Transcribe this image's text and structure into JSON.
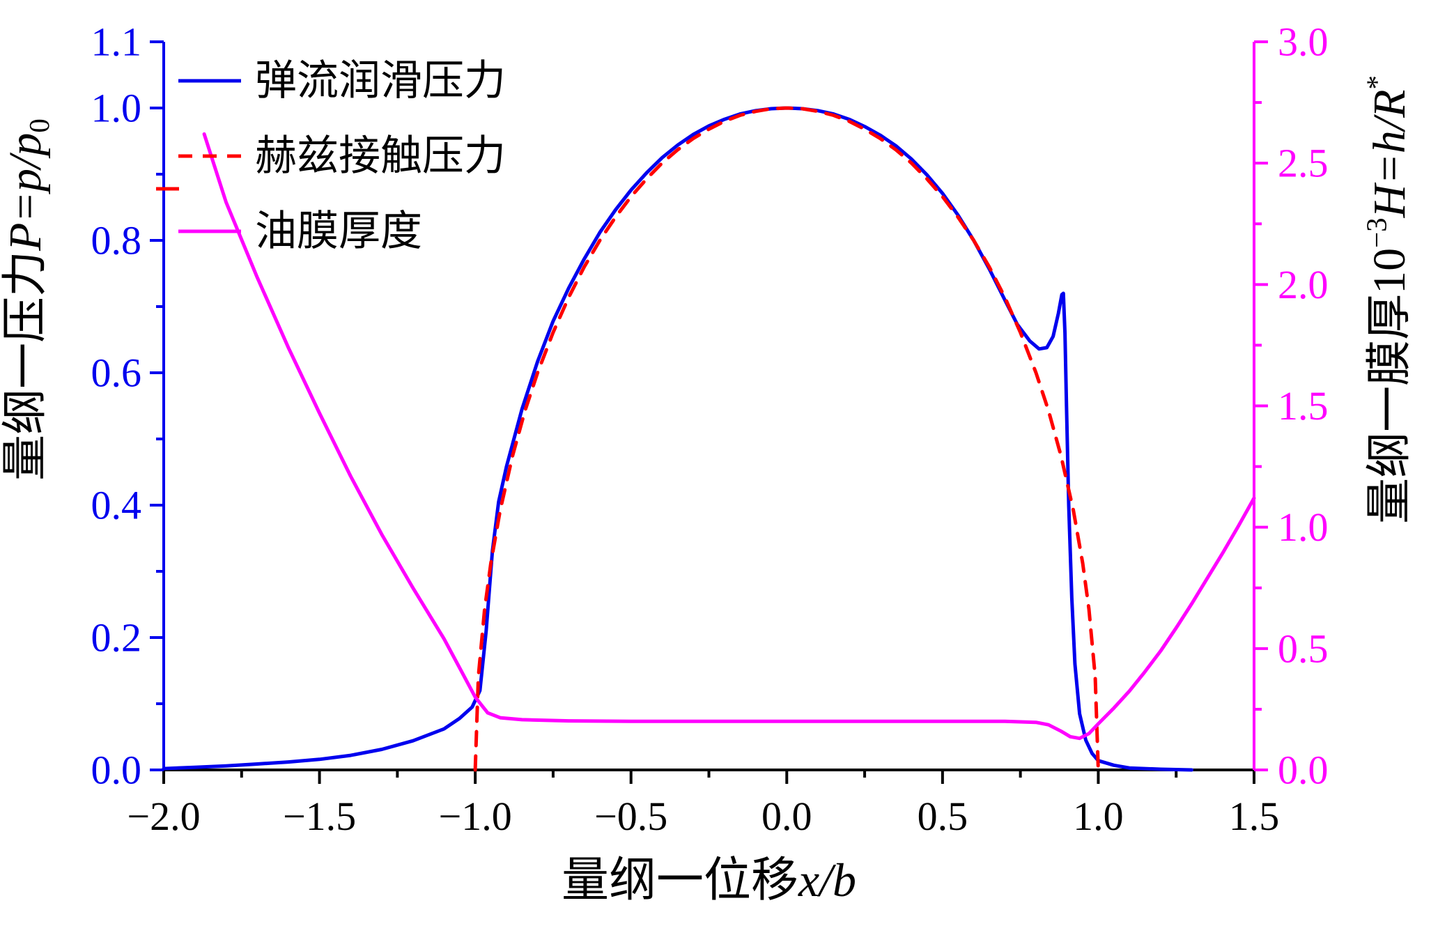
{
  "figure": {
    "background": "#ffffff"
  },
  "chart_data": {
    "type": "line",
    "title": "",
    "x_axis": {
      "title_parts": [
        {
          "t": "量纲一位移",
          "s": "cjk"
        },
        {
          "t": "x/b",
          "s": "i"
        }
      ],
      "range": [
        -2.0,
        1.5
      ],
      "majors": [
        -2.0,
        -1.5,
        -1.0,
        -0.5,
        0.0,
        0.5,
        1.0,
        1.5
      ],
      "labels": [
        "−2.0",
        "−1.5",
        "−1.0",
        "−0.5",
        "0.0",
        "0.5",
        "1.0",
        "1.5"
      ],
      "minor_step": 0.25,
      "color": "#000000"
    },
    "y_left": {
      "title_parts": [
        {
          "t": "量纲一压力",
          "s": "cjk"
        },
        {
          "t": "P=p/p",
          "s": "i"
        },
        {
          "t": "0",
          "s": "sub"
        }
      ],
      "range": [
        0.0,
        1.1
      ],
      "majors": [
        0.0,
        0.2,
        0.4,
        0.6,
        0.8,
        1.0,
        1.1
      ],
      "labels": [
        "0.0",
        "0.2",
        "0.4",
        "0.6",
        "0.8",
        "1.0",
        "1.1"
      ],
      "minor_step": 0.1,
      "color": "#0000EE"
    },
    "y_right": {
      "title_parts": [
        {
          "t": "量纲一膜厚",
          "s": "cjk"
        },
        {
          "t": "10",
          "s": "n"
        },
        {
          "t": "−3",
          "s": "sup"
        },
        {
          "t": "H=h/R",
          "s": "i"
        },
        {
          "t": "*",
          "s": "sup"
        }
      ],
      "range": [
        0.0,
        3.0
      ],
      "majors": [
        0.0,
        0.5,
        1.0,
        1.5,
        2.0,
        2.5,
        3.0
      ],
      "labels": [
        "0.0",
        "0.5",
        "1.0",
        "1.5",
        "2.0",
        "2.5",
        "3.0"
      ],
      "minor_step": 0.25,
      "color": "#FF00FF"
    },
    "legend": {
      "position": "top-left",
      "entries": [
        {
          "id": "ehl-pressure",
          "label": "弹流润滑压力",
          "color": "#0000EE",
          "style": "solid"
        },
        {
          "id": "hertz-pressure",
          "label": "赫兹接触压力",
          "color": "#FF0000",
          "style": "dashed"
        },
        {
          "id": "film-thickness",
          "label": "油膜厚度",
          "color": "#FF00FF",
          "style": "solid"
        }
      ]
    },
    "artifact_dash": {
      "note": "short stray red dash left of legend",
      "color": "#FF0000"
    },
    "series": [
      {
        "id": "ehl-pressure",
        "name": "弹流润滑压力",
        "axis": "left",
        "color": "#0000EE",
        "style": "solid",
        "points": [
          [
            -2.0,
            0.002
          ],
          [
            -1.9,
            0.004
          ],
          [
            -1.8,
            0.006
          ],
          [
            -1.7,
            0.009
          ],
          [
            -1.6,
            0.012
          ],
          [
            -1.5,
            0.016
          ],
          [
            -1.4,
            0.022
          ],
          [
            -1.3,
            0.031
          ],
          [
            -1.2,
            0.044
          ],
          [
            -1.1,
            0.062
          ],
          [
            -1.05,
            0.078
          ],
          [
            -1.01,
            0.095
          ],
          [
            -0.985,
            0.12
          ],
          [
            -0.965,
            0.21
          ],
          [
            -0.945,
            0.33
          ],
          [
            -0.925,
            0.405
          ],
          [
            -0.9,
            0.458
          ],
          [
            -0.85,
            0.545
          ],
          [
            -0.8,
            0.617
          ],
          [
            -0.75,
            0.678
          ],
          [
            -0.7,
            0.728
          ],
          [
            -0.65,
            0.772
          ],
          [
            -0.6,
            0.812
          ],
          [
            -0.55,
            0.846
          ],
          [
            -0.5,
            0.876
          ],
          [
            -0.45,
            0.902
          ],
          [
            -0.4,
            0.925
          ],
          [
            -0.35,
            0.944
          ],
          [
            -0.3,
            0.96
          ],
          [
            -0.25,
            0.973
          ],
          [
            -0.2,
            0.983
          ],
          [
            -0.15,
            0.991
          ],
          [
            -0.1,
            0.996
          ],
          [
            -0.05,
            0.999
          ],
          [
            0,
            1.0
          ],
          [
            0.05,
            0.999
          ],
          [
            0.1,
            0.996
          ],
          [
            0.15,
            0.991
          ],
          [
            0.2,
            0.983
          ],
          [
            0.25,
            0.972
          ],
          [
            0.3,
            0.959
          ],
          [
            0.35,
            0.943
          ],
          [
            0.4,
            0.923
          ],
          [
            0.45,
            0.899
          ],
          [
            0.5,
            0.871
          ],
          [
            0.55,
            0.838
          ],
          [
            0.6,
            0.8
          ],
          [
            0.65,
            0.757
          ],
          [
            0.7,
            0.71
          ],
          [
            0.74,
            0.673
          ],
          [
            0.78,
            0.648
          ],
          [
            0.81,
            0.636
          ],
          [
            0.835,
            0.638
          ],
          [
            0.855,
            0.655
          ],
          [
            0.872,
            0.69
          ],
          [
            0.883,
            0.718
          ],
          [
            0.888,
            0.72
          ],
          [
            0.893,
            0.66
          ],
          [
            0.898,
            0.55
          ],
          [
            0.905,
            0.4
          ],
          [
            0.915,
            0.26
          ],
          [
            0.925,
            0.16
          ],
          [
            0.94,
            0.085
          ],
          [
            0.96,
            0.045
          ],
          [
            0.98,
            0.025
          ],
          [
            1.0,
            0.014
          ],
          [
            1.05,
            0.007
          ],
          [
            1.1,
            0.003
          ],
          [
            1.2,
            0.001
          ],
          [
            1.3,
            0.0
          ]
        ]
      },
      {
        "id": "hertz-pressure",
        "name": "赫兹接触压力",
        "axis": "left",
        "color": "#FF0000",
        "style": "dashed",
        "points": [
          [
            -1.0,
            0
          ],
          [
            -0.99,
            0.141
          ],
          [
            -0.97,
            0.243
          ],
          [
            -0.95,
            0.312
          ],
          [
            -0.92,
            0.392
          ],
          [
            -0.88,
            0.475
          ],
          [
            -0.84,
            0.543
          ],
          [
            -0.8,
            0.6
          ],
          [
            -0.75,
            0.661
          ],
          [
            -0.7,
            0.714
          ],
          [
            -0.65,
            0.76
          ],
          [
            -0.6,
            0.8
          ],
          [
            -0.55,
            0.835
          ],
          [
            -0.5,
            0.866
          ],
          [
            -0.45,
            0.893
          ],
          [
            -0.4,
            0.917
          ],
          [
            -0.35,
            0.937
          ],
          [
            -0.3,
            0.954
          ],
          [
            -0.25,
            0.968
          ],
          [
            -0.2,
            0.98
          ],
          [
            -0.15,
            0.989
          ],
          [
            -0.1,
            0.995
          ],
          [
            -0.05,
            0.999
          ],
          [
            0,
            1.0
          ],
          [
            0.05,
            0.999
          ],
          [
            0.1,
            0.995
          ],
          [
            0.15,
            0.989
          ],
          [
            0.2,
            0.98
          ],
          [
            0.25,
            0.968
          ],
          [
            0.3,
            0.954
          ],
          [
            0.35,
            0.937
          ],
          [
            0.4,
            0.917
          ],
          [
            0.45,
            0.893
          ],
          [
            0.5,
            0.866
          ],
          [
            0.55,
            0.835
          ],
          [
            0.6,
            0.8
          ],
          [
            0.65,
            0.76
          ],
          [
            0.7,
            0.714
          ],
          [
            0.75,
            0.661
          ],
          [
            0.8,
            0.6
          ],
          [
            0.84,
            0.543
          ],
          [
            0.88,
            0.475
          ],
          [
            0.92,
            0.392
          ],
          [
            0.95,
            0.312
          ],
          [
            0.97,
            0.243
          ],
          [
            0.99,
            0.141
          ],
          [
            1.0,
            0
          ]
        ]
      },
      {
        "id": "film-thickness",
        "name": "油膜厚度",
        "axis": "right",
        "color": "#FF00FF",
        "style": "solid",
        "points": [
          [
            -1.87,
            2.62
          ],
          [
            -1.8,
            2.34
          ],
          [
            -1.7,
            2.03
          ],
          [
            -1.6,
            1.74
          ],
          [
            -1.5,
            1.47
          ],
          [
            -1.4,
            1.21
          ],
          [
            -1.3,
            0.97
          ],
          [
            -1.2,
            0.75
          ],
          [
            -1.1,
            0.54
          ],
          [
            -1.05,
            0.42
          ],
          [
            -1.0,
            0.3
          ],
          [
            -0.96,
            0.235
          ],
          [
            -0.92,
            0.215
          ],
          [
            -0.85,
            0.207
          ],
          [
            -0.7,
            0.202
          ],
          [
            -0.5,
            0.2
          ],
          [
            -0.3,
            0.2
          ],
          [
            -0.1,
            0.2
          ],
          [
            0.1,
            0.2
          ],
          [
            0.3,
            0.2
          ],
          [
            0.5,
            0.2
          ],
          [
            0.7,
            0.2
          ],
          [
            0.8,
            0.196
          ],
          [
            0.84,
            0.186
          ],
          [
            0.88,
            0.16
          ],
          [
            0.91,
            0.137
          ],
          [
            0.94,
            0.13
          ],
          [
            0.97,
            0.15
          ],
          [
            1.0,
            0.19
          ],
          [
            1.05,
            0.255
          ],
          [
            1.1,
            0.325
          ],
          [
            1.15,
            0.405
          ],
          [
            1.2,
            0.49
          ],
          [
            1.25,
            0.585
          ],
          [
            1.3,
            0.685
          ],
          [
            1.35,
            0.79
          ],
          [
            1.4,
            0.895
          ],
          [
            1.45,
            1.005
          ],
          [
            1.5,
            1.12
          ]
        ]
      }
    ]
  }
}
